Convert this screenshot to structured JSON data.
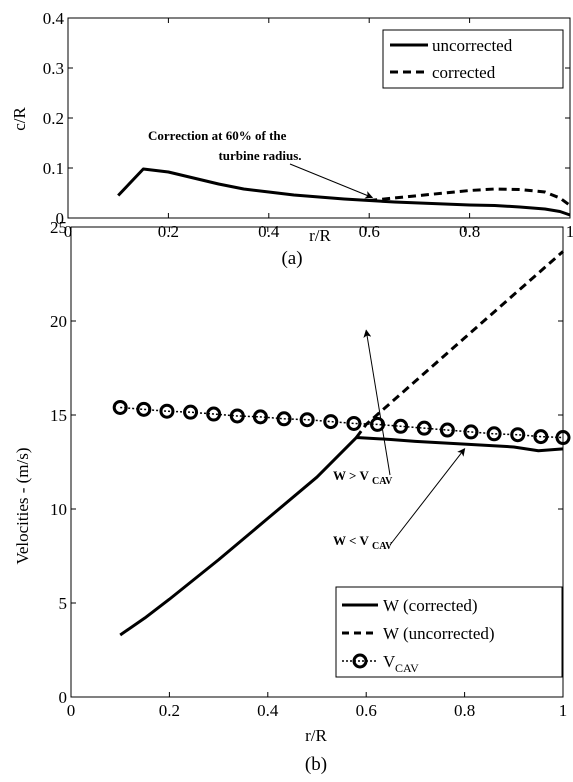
{
  "chart_data": [
    {
      "type": "line",
      "panel_caption": "(a)",
      "xlabel": "r/R",
      "ylabel": "c/R",
      "xlim": [
        0,
        1
      ],
      "ylim": [
        0,
        0.4
      ],
      "xticks": [
        0,
        0.2,
        0.4,
        0.6,
        0.8,
        1
      ],
      "xtick_labels": [
        "0",
        "0.2",
        "0.4",
        "0.6",
        "0.8",
        "1"
      ],
      "yticks": [
        0,
        0.1,
        0.2,
        0.3,
        0.4
      ],
      "ytick_labels": [
        "0",
        "0.1",
        "0.2",
        "0.3",
        "0.4"
      ],
      "legend_position": "top-right",
      "grid": false,
      "annotation": {
        "line1": "Correction at 60% of the",
        "line2": "turbine radius.",
        "arrow_to": [
          0.61,
          0.035
        ]
      },
      "series": [
        {
          "name": "uncorrected",
          "style": "solid",
          "x": [
            0.1,
            0.15,
            0.2,
            0.25,
            0.3,
            0.35,
            0.4,
            0.45,
            0.5,
            0.55,
            0.6,
            0.65,
            0.7,
            0.75,
            0.8,
            0.85,
            0.9,
            0.95,
            0.98,
            1.0
          ],
          "y": [
            0.045,
            0.098,
            0.092,
            0.08,
            0.068,
            0.058,
            0.052,
            0.046,
            0.042,
            0.038,
            0.035,
            0.032,
            0.03,
            0.028,
            0.026,
            0.025,
            0.022,
            0.018,
            0.013,
            0.006
          ]
        },
        {
          "name": "corrected",
          "style": "dashed",
          "x": [
            0.6,
            0.65,
            0.7,
            0.75,
            0.8,
            0.85,
            0.9,
            0.95,
            0.98,
            1.0
          ],
          "y": [
            0.035,
            0.04,
            0.045,
            0.05,
            0.055,
            0.058,
            0.057,
            0.052,
            0.04,
            0.025
          ]
        }
      ]
    },
    {
      "type": "line",
      "panel_caption": "(b)",
      "xlabel": "r/R",
      "ylabel": "Velocities - (m/s)",
      "xlim": [
        0,
        1
      ],
      "ylim": [
        0,
        25
      ],
      "xticks": [
        0,
        0.2,
        0.4,
        0.6,
        0.8,
        1
      ],
      "xtick_labels": [
        "0",
        "0.2",
        "0.4",
        "0.6",
        "0.8",
        "1"
      ],
      "yticks": [
        0,
        5,
        10,
        15,
        20,
        25
      ],
      "ytick_labels": [
        "0",
        "5",
        "10",
        "15",
        "20",
        "25"
      ],
      "legend_position": "bottom-right",
      "grid": false,
      "annotations": [
        {
          "main": "W > V",
          "sub": "CAV",
          "arrow_to": [
            0.6,
            19.5
          ]
        },
        {
          "main": "W < V",
          "sub": "CAV",
          "arrow_to": [
            0.8,
            13.2
          ]
        }
      ],
      "series": [
        {
          "name": "W (corrected)",
          "style": "solid",
          "x": [
            0.1,
            0.15,
            0.2,
            0.3,
            0.4,
            0.5,
            0.58,
            0.65,
            0.7,
            0.8,
            0.9,
            0.95,
            1.0
          ],
          "y": [
            3.3,
            4.2,
            5.2,
            7.3,
            9.5,
            11.7,
            13.8,
            13.7,
            13.6,
            13.45,
            13.3,
            13.1,
            13.2
          ]
        },
        {
          "name": "W (uncorrected)",
          "style": "dashed",
          "x": [
            0.58,
            0.6,
            0.7,
            0.8,
            0.9,
            1.0
          ],
          "y": [
            13.8,
            14.5,
            16.8,
            19.1,
            21.4,
            23.7
          ]
        },
        {
          "name": "V",
          "name_sub": "CAV",
          "style": "dotted-circles",
          "x": [
            0.1,
            0.148,
            0.195,
            0.243,
            0.29,
            0.338,
            0.385,
            0.433,
            0.48,
            0.528,
            0.575,
            0.623,
            0.67,
            0.718,
            0.765,
            0.813,
            0.86,
            0.908,
            0.955,
            1.0
          ],
          "y": [
            15.4,
            15.3,
            15.2,
            15.15,
            15.05,
            14.95,
            14.9,
            14.8,
            14.75,
            14.65,
            14.55,
            14.5,
            14.4,
            14.3,
            14.2,
            14.1,
            14.0,
            13.95,
            13.85,
            13.8
          ]
        }
      ]
    }
  ]
}
